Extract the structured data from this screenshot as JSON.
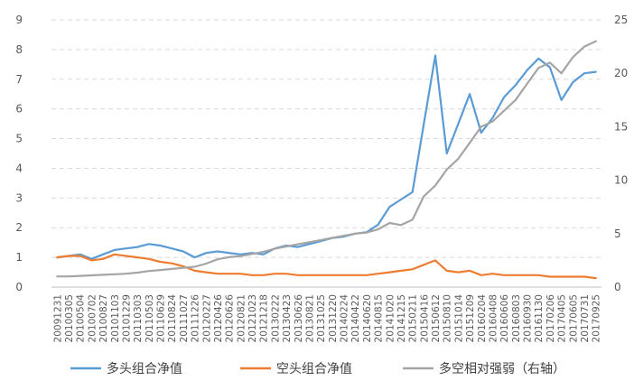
{
  "chart_data": {
    "type": "line",
    "title": "",
    "xlabel": "",
    "ylabel": "",
    "y_left": {
      "min": 0,
      "max": 9,
      "ticks": [
        "0",
        "1",
        "2",
        "3",
        "4",
        "5",
        "6",
        "7",
        "8",
        "9"
      ]
    },
    "y_right": {
      "min": 0,
      "max": 25,
      "ticks": [
        "0",
        "5",
        "10",
        "15",
        "20",
        "25"
      ]
    },
    "grid": "horizontal-dashed",
    "legend_position": "bottom",
    "x": [
      "20091231",
      "20100305",
      "20100504",
      "20100702",
      "20100827",
      "20101103",
      "20101229",
      "20110303",
      "20110503",
      "20110629",
      "20110824",
      "20111027",
      "20111226",
      "20120227",
      "20120426",
      "20120626",
      "20120821",
      "20121023",
      "20121218",
      "20130222",
      "20130423",
      "20130626",
      "20130821",
      "20131025",
      "20131220",
      "20140224",
      "20140422",
      "20140620",
      "20140815",
      "20141020",
      "20141215",
      "20150211",
      "20150416",
      "20150612",
      "20150810",
      "20151014",
      "20151209",
      "20160204",
      "20160408",
      "20160606",
      "20160803",
      "20160930",
      "20161130",
      "20170206",
      "20170405",
      "20170605",
      "20170731",
      "20170925"
    ],
    "series": [
      {
        "name": "多头组合净值",
        "color": "#5b9bd5",
        "axis": "left",
        "values": [
          1.0,
          1.05,
          1.1,
          0.95,
          1.1,
          1.25,
          1.3,
          1.35,
          1.45,
          1.4,
          1.3,
          1.2,
          1.0,
          1.15,
          1.2,
          1.15,
          1.1,
          1.15,
          1.1,
          1.3,
          1.4,
          1.35,
          1.45,
          1.55,
          1.65,
          1.7,
          1.8,
          1.85,
          2.1,
          2.7,
          2.95,
          3.2,
          5.5,
          7.8,
          4.5,
          5.5,
          6.5,
          5.2,
          5.7,
          6.4,
          6.8,
          7.3,
          7.7,
          7.4,
          6.3,
          6.9,
          7.2,
          7.25
        ]
      },
      {
        "name": "空头组合净值",
        "color": "#ed7d31",
        "axis": "left",
        "values": [
          1.0,
          1.05,
          1.05,
          0.9,
          0.95,
          1.1,
          1.05,
          1.0,
          0.95,
          0.85,
          0.8,
          0.7,
          0.55,
          0.5,
          0.45,
          0.45,
          0.45,
          0.4,
          0.4,
          0.45,
          0.45,
          0.4,
          0.4,
          0.4,
          0.4,
          0.4,
          0.4,
          0.4,
          0.45,
          0.5,
          0.55,
          0.6,
          0.75,
          0.9,
          0.55,
          0.5,
          0.55,
          0.4,
          0.45,
          0.4,
          0.4,
          0.4,
          0.4,
          0.35,
          0.35,
          0.35,
          0.35,
          0.3
        ]
      },
      {
        "name": "多空相对强弱（右轴）",
        "color": "#a5a5a5",
        "axis": "right",
        "values": [
          1.0,
          1.0,
          1.05,
          1.1,
          1.15,
          1.2,
          1.25,
          1.35,
          1.5,
          1.6,
          1.7,
          1.8,
          1.9,
          2.2,
          2.6,
          2.8,
          2.9,
          3.1,
          3.3,
          3.6,
          3.8,
          4.0,
          4.2,
          4.4,
          4.6,
          4.8,
          5.0,
          5.1,
          5.4,
          6.0,
          5.8,
          6.3,
          8.5,
          9.5,
          11.0,
          12.0,
          13.5,
          15.0,
          15.5,
          16.5,
          17.5,
          19.0,
          20.5,
          21.0,
          20.0,
          21.5,
          22.5,
          23.0
        ]
      }
    ]
  }
}
